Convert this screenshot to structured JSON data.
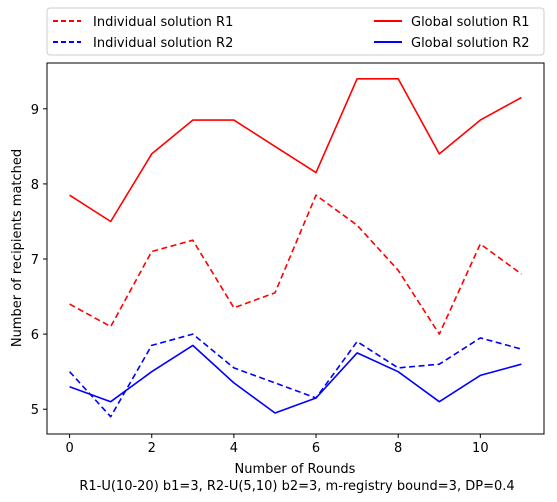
{
  "chart_data": {
    "type": "line",
    "title": "",
    "xlabel": "Number of Rounds",
    "xlabel_sub": "R1-U(10-20) b1=3, R2-U(5,10) b2=3, m-registry bound=3, DP=0.4",
    "ylabel": "Number of recipients matched",
    "x": [
      0,
      1,
      2,
      3,
      4,
      5,
      6,
      7,
      8,
      9,
      10,
      11
    ],
    "xlim": [
      -0.55,
      11.55
    ],
    "ylim": [
      4.67,
      9.61
    ],
    "xticks": [
      0,
      2,
      4,
      6,
      8,
      10
    ],
    "yticks": [
      5,
      6,
      7,
      8,
      9
    ],
    "grid": false,
    "legend_placement": "top, outside plot, two columns",
    "series": [
      {
        "name": "Individual solution R1",
        "color": "#ff0000",
        "style": "dashed",
        "values": [
          6.4,
          6.1,
          7.1,
          7.25,
          6.35,
          6.55,
          7.85,
          7.45,
          6.85,
          6.0,
          7.2,
          6.8
        ]
      },
      {
        "name": "Individual solution R2",
        "color": "#0000ff",
        "style": "dashed",
        "values": [
          5.5,
          4.9,
          5.85,
          6.0,
          5.55,
          5.35,
          5.15,
          5.9,
          5.55,
          5.6,
          5.95,
          5.8
        ]
      },
      {
        "name": "Global solution R1",
        "color": "#ff0000",
        "style": "solid",
        "values": [
          7.85,
          7.5,
          8.4,
          8.85,
          8.85,
          8.5,
          8.15,
          9.4,
          9.4,
          8.4,
          8.85,
          9.15
        ]
      },
      {
        "name": "Global solution R2",
        "color": "#0000ff",
        "style": "solid",
        "values": [
          5.3,
          5.1,
          5.5,
          5.85,
          5.35,
          4.95,
          5.15,
          5.75,
          5.5,
          5.1,
          5.45,
          5.6
        ]
      }
    ]
  }
}
